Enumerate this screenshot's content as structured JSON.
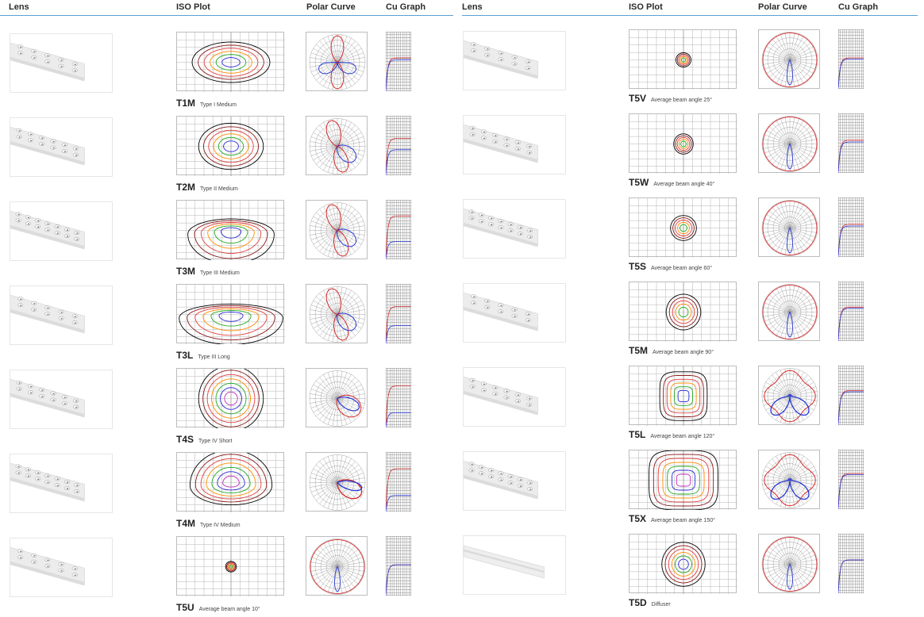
{
  "headers": {
    "lens": "Lens",
    "iso": "ISO Plot",
    "polar": "Polar Curve",
    "cu": "Cu Graph"
  },
  "colors": {
    "accent_line": "#5aa0cf",
    "contours": [
      "#000000",
      "#8b1a1a",
      "#e33d3d",
      "#ff8c00",
      "#22aa22",
      "#2a2ad6",
      "#c028c0",
      "#e3c000"
    ],
    "polar_series_a": "#d42a2a",
    "polar_series_b": "#2a3ad6"
  },
  "left_rows": [
    {
      "code": "T1M",
      "desc": "Type I  Medium",
      "iso": {
        "shape": "flat",
        "w": 0.36,
        "h": 0.34,
        "rings": 6
      },
      "polar": {
        "type": "t1"
      },
      "cu": {
        "red": 0.56,
        "blue": 0.53
      }
    },
    {
      "code": "T2M",
      "desc": "Type II  Medium",
      "iso": {
        "shape": "oval",
        "w": 0.3,
        "h": 0.39,
        "rings": 6
      },
      "polar": {
        "type": "t2"
      },
      "cu": {
        "red": 0.62,
        "blue": 0.43
      }
    },
    {
      "code": "T3M",
      "desc": "Type III  Medium",
      "iso": {
        "shape": "tri",
        "w": 0.4,
        "h": 0.43,
        "rings": 6
      },
      "polar": {
        "type": "t3"
      },
      "cu": {
        "red": 0.73,
        "blue": 0.3
      }
    },
    {
      "code": "T3L",
      "desc": "Type III  Long",
      "iso": {
        "shape": "tri",
        "w": 0.48,
        "h": 0.39,
        "rings": 6
      },
      "polar": {
        "type": "t3l"
      },
      "cu": {
        "red": 0.62,
        "blue": 0.3
      }
    },
    {
      "code": "T4S",
      "desc": "Type IV  Short",
      "iso": {
        "shape": "tall",
        "w": 0.3,
        "h": 0.55,
        "rings": 7
      },
      "polar": {
        "type": "t4s"
      },
      "cu": {
        "red": 0.7,
        "blue": 0.25
      }
    },
    {
      "code": "T4M",
      "desc": "Type IV  Medium",
      "iso": {
        "shape": "arch",
        "w": 0.38,
        "h": 0.5,
        "rings": 7
      },
      "polar": {
        "type": "t4m"
      },
      "cu": {
        "red": 0.72,
        "blue": 0.27
      }
    },
    {
      "code": "T5U",
      "desc": "Average beam  angle 10°",
      "iso": {
        "shape": "dot",
        "w": 0.05,
        "h": 0.09,
        "rings": 5
      },
      "polar": {
        "type": "ring"
      },
      "cu": {
        "red": 0.52,
        "blue": 0.52
      }
    }
  ],
  "right_rows": [
    {
      "code": "T5V",
      "desc": "Average beam  angle 25°",
      "iso": {
        "shape": "dot",
        "w": 0.07,
        "h": 0.12,
        "rings": 5
      },
      "polar": {
        "type": "ring"
      },
      "cu": {
        "red": 0.52,
        "blue": 0.5
      }
    },
    {
      "code": "T5W",
      "desc": "Average beam  angle 40°",
      "iso": {
        "shape": "round",
        "w": 0.09,
        "h": 0.17,
        "rings": 5
      },
      "polar": {
        "type": "ring"
      },
      "cu": {
        "red": 0.55,
        "blue": 0.52
      }
    },
    {
      "code": "T5S",
      "desc": "Average beam  angle 60°",
      "iso": {
        "shape": "round",
        "w": 0.12,
        "h": 0.21,
        "rings": 5
      },
      "polar": {
        "type": "ring"
      },
      "cu": {
        "red": 0.55,
        "blue": 0.52
      }
    },
    {
      "code": "T5M",
      "desc": "Average beam  angle 90°",
      "iso": {
        "shape": "round",
        "w": 0.16,
        "h": 0.3,
        "rings": 5
      },
      "polar": {
        "type": "ring"
      },
      "cu": {
        "red": 0.57,
        "blue": 0.55
      }
    },
    {
      "code": "T5L",
      "desc": "Average beam  angle 120°",
      "iso": {
        "shape": "square",
        "w": 0.22,
        "h": 0.41,
        "rings": 6
      },
      "polar": {
        "type": "wing"
      },
      "cu": {
        "red": 0.58,
        "blue": 0.56
      }
    },
    {
      "code": "T5X",
      "desc": "Average beam  angle 150°",
      "iso": {
        "shape": "square",
        "w": 0.32,
        "h": 0.5,
        "rings": 7
      },
      "polar": {
        "type": "wing"
      },
      "cu": {
        "red": 0.6,
        "blue": 0.58
      }
    },
    {
      "code": "T5D",
      "desc": "Diffuser",
      "iso": {
        "shape": "round",
        "w": 0.2,
        "h": 0.37,
        "rings": 6
      },
      "polar": {
        "type": "ring"
      },
      "cu": {
        "red": 0.56,
        "blue": 0.56
      }
    }
  ]
}
